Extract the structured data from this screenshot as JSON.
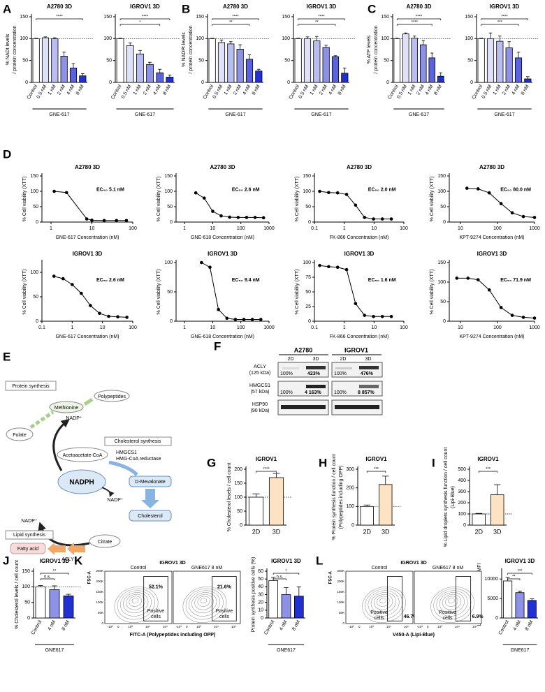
{
  "panel_labels": [
    "A",
    "B",
    "C",
    "D",
    "E",
    "F",
    "G",
    "H",
    "I",
    "J",
    "K",
    "L"
  ],
  "chart_data": [
    {
      "type": "bar",
      "title": "A2780 3D",
      "ylabel": [
        "% NADt levels",
        "/ protein concentration"
      ],
      "xlabel": "GNE-617",
      "categories": [
        "Control",
        "0.5 nM",
        "1 nM",
        "2 nM",
        "4 nM",
        "8 nM"
      ],
      "values": [
        100,
        102,
        100,
        60,
        33,
        15
      ],
      "errors": [
        1,
        2,
        2,
        9,
        10,
        5
      ],
      "colors": [
        "#ffffff",
        "#dfe1f8",
        "#b9bdf0",
        "#8d92e6",
        "#5b62dd",
        "#2130d0"
      ],
      "ylim": [
        0,
        150
      ],
      "yticks": [
        0,
        50,
        100,
        150
      ],
      "refline": 100,
      "significance": [
        "****"
      ]
    },
    {
      "type": "bar",
      "title": "IGROV1 3D",
      "xlabel": "GNE-617",
      "categories": [
        "Control",
        "0.5 nM",
        "1 nM",
        "2 nM",
        "4 nM",
        "8 nM"
      ],
      "values": [
        100,
        84,
        65,
        41,
        22,
        12
      ],
      "errors": [
        1,
        6,
        8,
        5,
        8,
        5
      ],
      "colors": [
        "#ffffff",
        "#dfe1f8",
        "#b9bdf0",
        "#8d92e6",
        "#5b62dd",
        "#2130d0"
      ],
      "ylim": [
        0,
        150
      ],
      "yticks": [
        0,
        50,
        100,
        150
      ],
      "refline": 100,
      "significance": [
        "****",
        "*"
      ]
    },
    {
      "type": "bar",
      "title": "A2780 3D",
      "ylabel": [
        "% NADPt levels",
        "/ protein concentration"
      ],
      "xlabel": "GNE-617",
      "categories": [
        "Control",
        "0.5 nM",
        "1 nM",
        "2 nM",
        "4 nM",
        "8 nM"
      ],
      "values": [
        100,
        91,
        88,
        76,
        53,
        26
      ],
      "errors": [
        1,
        6,
        5,
        10,
        10,
        4
      ],
      "colors": [
        "#ffffff",
        "#dfe1f8",
        "#b9bdf0",
        "#8d92e6",
        "#5b62dd",
        "#2130d0"
      ],
      "ylim": [
        0,
        150
      ],
      "yticks": [
        0,
        50,
        100,
        150
      ],
      "refline": 100,
      "significance": [
        "****",
        "**"
      ]
    },
    {
      "type": "bar",
      "title": "IGROV1 3D",
      "xlabel": "GNE-617",
      "categories": [
        "Control",
        "0.5 nM",
        "1 nM",
        "2 nM",
        "4 nM",
        "8 nM"
      ],
      "values": [
        100,
        100,
        95,
        80,
        59,
        21
      ],
      "errors": [
        1,
        4,
        10,
        5,
        2,
        12
      ],
      "colors": [
        "#ffffff",
        "#dfe1f8",
        "#b9bdf0",
        "#8d92e6",
        "#5b62dd",
        "#2130d0"
      ],
      "ylim": [
        0,
        150
      ],
      "yticks": [
        0,
        50,
        100,
        150
      ],
      "refline": 100,
      "significance": [
        "****",
        "**"
      ]
    },
    {
      "type": "bar",
      "title": "A2780 3D",
      "ylabel": [
        "% ATP levels",
        "/ protein concentration"
      ],
      "xlabel": "GNE-617",
      "categories": [
        "Control",
        "0.5 nM",
        "1 nM",
        "2 nM",
        "4 nM",
        "8 nM"
      ],
      "values": [
        100,
        111,
        101,
        86,
        56,
        14
      ],
      "errors": [
        1,
        2,
        5,
        10,
        11,
        8
      ],
      "colors": [
        "#ffffff",
        "#dfe1f8",
        "#b9bdf0",
        "#8d92e6",
        "#5b62dd",
        "#2130d0"
      ],
      "ylim": [
        0,
        150
      ],
      "yticks": [
        0,
        50,
        100,
        150
      ],
      "refline": 100,
      "significance": [
        "****",
        "****"
      ]
    },
    {
      "type": "bar",
      "title": "IGROV1 3D",
      "xlabel": "GNE-617",
      "categories": [
        "Control",
        "0.5 nM",
        "1 nM",
        "2 nM",
        "4 nM",
        "8 nM"
      ],
      "values": [
        100,
        100,
        94,
        79,
        56,
        8
      ],
      "errors": [
        1,
        13,
        12,
        14,
        13,
        5
      ],
      "colors": [
        "#ffffff",
        "#dfe1f8",
        "#b9bdf0",
        "#8d92e6",
        "#5b62dd",
        "#2130d0"
      ],
      "ylim": [
        0,
        150
      ],
      "yticks": [
        0,
        50,
        100,
        150
      ],
      "refline": 100,
      "significance": [
        "****",
        "***"
      ]
    },
    {
      "type": "curve",
      "title": "A2780 3D",
      "ylabel": "% Cell viability (XTT)",
      "xlabel": "GNE-617 Concentration (nM)",
      "annotation": "EC₅₀ 5.1 nM",
      "log_x": true,
      "x": [
        1.2,
        2.4,
        7.5,
        10,
        20,
        40,
        70
      ],
      "values": [
        100,
        96,
        10,
        6,
        5,
        5,
        5
      ],
      "xlim": [
        0.6,
        100
      ],
      "xticks": [
        1,
        10,
        100
      ],
      "ylim": [
        0,
        150
      ],
      "yticks": [
        0,
        50,
        100,
        150
      ]
    },
    {
      "type": "curve",
      "title": "A2780 3D",
      "ylabel": "% Cell viability (XTT)",
      "xlabel": "GNE-618 Concentration (nM)",
      "annotation": "EC₅₀ 2.6 nM",
      "log_x": true,
      "x": [
        2.5,
        5,
        10,
        20,
        40,
        80,
        160,
        320,
        640
      ],
      "values": [
        95,
        78,
        35,
        20,
        16,
        15,
        15,
        15,
        14
      ],
      "xlim": [
        0.5,
        1000
      ],
      "xticks": [
        1,
        10,
        100,
        1000
      ],
      "ylim": [
        0,
        150
      ],
      "yticks": [
        0,
        50,
        100,
        150
      ]
    },
    {
      "type": "curve",
      "title": "A2780 3D",
      "ylabel": "% Cell viability (XTT)",
      "xlabel": "FK-866 Concentration (nM)",
      "annotation": "EC₅₀ 2.0 nM",
      "log_x": true,
      "x": [
        0.15,
        0.3,
        0.6,
        1.2,
        2.4,
        4.8,
        9.6,
        19,
        38
      ],
      "values": [
        100,
        96,
        95,
        90,
        55,
        15,
        10,
        10,
        10
      ],
      "xlim": [
        0.1,
        100
      ],
      "xticks": [
        0.1,
        1,
        10,
        100
      ],
      "ylim": [
        0,
        150
      ],
      "yticks": [
        0,
        50,
        100,
        150
      ]
    },
    {
      "type": "curve",
      "title": "A2780 3D",
      "ylabel": "% Cell viability (XTT)",
      "xlabel": "KPT-9274 Concentration (nM)",
      "annotation": "EC₅₀ 80.0 nM",
      "log_x": true,
      "x": [
        15,
        30,
        60,
        125,
        250,
        500,
        1000
      ],
      "values": [
        110,
        108,
        95,
        60,
        30,
        18,
        15
      ],
      "xlim": [
        5,
        1000
      ],
      "xticks": [
        10,
        100,
        1000
      ],
      "ylim": [
        0,
        150
      ],
      "yticks": [
        0,
        50,
        100,
        150
      ]
    },
    {
      "type": "curve",
      "title": "IGROV1 3D",
      "ylabel": "% Cell viability (XTT)",
      "xlabel": "GNE-617 Concentration (nM)",
      "annotation": "EC₅₀ 2.6 nM",
      "log_x": true,
      "x": [
        0.25,
        0.5,
        1,
        2,
        4,
        8,
        16,
        32,
        64
      ],
      "values": [
        92,
        87,
        75,
        57,
        32,
        16,
        10,
        9,
        8
      ],
      "xlim": [
        0.1,
        100
      ],
      "xticks": [
        0.1,
        1,
        10,
        100
      ],
      "ylim": [
        0,
        120
      ],
      "yticks": [
        0,
        50,
        100
      ]
    },
    {
      "type": "curve",
      "title": "IGROV1 3D",
      "ylabel": "% Cell viability (XTT)",
      "xlabel": "GNE-618 Concentration (nM)",
      "annotation": "EC₅₀ 9.4 nM",
      "log_x": true,
      "x": [
        4,
        8,
        16,
        32,
        64,
        128,
        256,
        512
      ],
      "values": [
        100,
        92,
        20,
        5,
        3,
        3,
        3,
        3
      ],
      "xlim": [
        0.5,
        1000
      ],
      "xticks": [
        1,
        10,
        100,
        1000
      ],
      "ylim": [
        0,
        100
      ],
      "yticks": [
        0,
        50,
        100
      ]
    },
    {
      "type": "curve",
      "title": "IGROV1 3D",
      "ylabel": "% Cell viability (XTT)",
      "xlabel": "FK-866 Concentration (nM)",
      "annotation": "EC₅₀ 1.6 nM",
      "log_x": true,
      "x": [
        0.15,
        0.3,
        0.6,
        1.2,
        2.4,
        4.8,
        9.6,
        19,
        38
      ],
      "values": [
        95,
        93,
        92,
        88,
        30,
        10,
        8,
        8,
        8
      ],
      "xlim": [
        0.1,
        100
      ],
      "xticks": [
        0.1,
        1,
        10,
        100
      ],
      "ylim": [
        0,
        100
      ],
      "yticks": [
        0,
        25,
        50,
        75,
        100
      ]
    },
    {
      "type": "curve",
      "title": "IGROV1 3D",
      "ylabel": "% Cell viability (XTT)",
      "xlabel": "KPT-9274 Concentration (nM)",
      "annotation": "EC₅₀ 71.9 nM",
      "log_x": true,
      "x": [
        8,
        16,
        30,
        60,
        125,
        250,
        500,
        1000
      ],
      "values": [
        110,
        110,
        106,
        80,
        35,
        15,
        10,
        8
      ],
      "xlim": [
        5,
        1000
      ],
      "xticks": [
        10,
        100,
        1000
      ],
      "ylim": [
        0,
        150
      ],
      "yticks": [
        0,
        50,
        100,
        150
      ]
    },
    {
      "type": "bar",
      "title": "IGROV1",
      "ylabel": [
        "% Cholesterol levels / cell count"
      ],
      "categories": [
        "2D",
        "3D"
      ],
      "values": [
        100,
        170
      ],
      "errors": [
        12,
        15
      ],
      "colors": [
        "#ffffff",
        "#fde3c4"
      ],
      "ylim": [
        0,
        200
      ],
      "yticks": [
        0,
        50,
        100,
        150,
        200
      ],
      "refline": 100,
      "significance": [
        "****"
      ]
    },
    {
      "type": "bar",
      "title": "IGROV1",
      "ylabel": [
        "% Protein synthesis function / cell count",
        "(Polypeptides including OPP)"
      ],
      "categories": [
        "2D",
        "3D"
      ],
      "values": [
        100,
        218
      ],
      "errors": [
        8,
        45
      ],
      "colors": [
        "#ffffff",
        "#fde3c4"
      ],
      "ylim": [
        0,
        300
      ],
      "yticks": [
        0,
        100,
        200,
        300
      ],
      "refline": 100,
      "significance": [
        "***"
      ]
    },
    {
      "type": "bar",
      "title": "IGROV1",
      "ylabel": [
        "% Lipid droplets synthesis function / cell count",
        "(Lipi-Blue)"
      ],
      "categories": [
        "2D",
        "3D"
      ],
      "values": [
        100,
        272
      ],
      "errors": [
        5,
        90
      ],
      "colors": [
        "#ffffff",
        "#fde3c4"
      ],
      "ylim": [
        0,
        500
      ],
      "yticks": [
        0,
        100,
        200,
        300,
        400,
        500
      ],
      "refline": 100,
      "significance": [
        "***"
      ]
    },
    {
      "type": "bar",
      "title": "IGROV1 3D",
      "ylabel": [
        "% Cholesterol levels / cell count"
      ],
      "xlabel": "GNE617",
      "categories": [
        "Control",
        "4 nM",
        "8 nM"
      ],
      "values": [
        100,
        91,
        71
      ],
      "errors": [
        4,
        12,
        5
      ],
      "colors": [
        "#ffffff",
        "#8d92e6",
        "#2130d0"
      ],
      "ylim": [
        0,
        150
      ],
      "yticks": [
        0,
        50,
        100,
        150
      ],
      "refline": 100,
      "significance": [
        "**",
        "n.s."
      ]
    },
    {
      "type": "bar",
      "title": "IGROV1 3D",
      "ylabel": [
        "Protein synthesis positive cells (%)"
      ],
      "xlabel": "GNE617",
      "categories": [
        "Control",
        "4 nM",
        "8 nM"
      ],
      "values": [
        48,
        30,
        28
      ],
      "errors": [
        4,
        9,
        12
      ],
      "colors": [
        "#ffffff",
        "#8d92e6",
        "#2130d0"
      ],
      "ylim": [
        0,
        60
      ],
      "yticks": [
        0,
        10,
        20,
        30,
        40,
        50,
        60
      ],
      "significance": [
        "*",
        "n.s."
      ]
    },
    {
      "type": "bar",
      "title": "IGROV1 3D",
      "ylabel": [
        "Lipi-Blue with Geometric MFI"
      ],
      "xlabel": "GNE617",
      "categories": [
        "Control",
        "4 nM",
        "8 nM"
      ],
      "values": [
        9500,
        6500,
        4500
      ],
      "errors": [
        900,
        400,
        400
      ],
      "colors": [
        "#ffffff",
        "#8d92e6",
        "#2130d0"
      ],
      "ylim": [
        0,
        12000
      ],
      "yticks": [
        0,
        5000,
        10000
      ],
      "significance": [
        "***",
        "**"
      ]
    }
  ],
  "flow": [
    {
      "title": "IGROV1 3D",
      "ylabel": "FSC-A",
      "xlabel": "FITC-A (Polypeptides including OPP)",
      "gate_label": [
        "Positive",
        "cells"
      ],
      "yticks": [
        "0",
        "50K",
        "100K",
        "150K",
        "200K",
        "250K"
      ],
      "xticks": [
        "-10³",
        "0",
        "10³",
        "10⁴",
        "10⁵"
      ],
      "plots": [
        {
          "name": "Control",
          "gate": "52.1%"
        },
        {
          "name": "GNE617 8 nM",
          "gate": "21.6%"
        }
      ]
    },
    {
      "title": "IGROV1 3D",
      "ylabel": "FSC-A",
      "xlabel": "V450-A (Lipi-Blue)",
      "gate_label": [
        "Positive",
        "cells"
      ],
      "yticks": [
        "0",
        "50K",
        "100K",
        "150K",
        "200K",
        "250K"
      ],
      "xticks": [
        "-10³",
        "0",
        "10³",
        "10⁴",
        "10⁵"
      ],
      "plots": [
        {
          "name": "Control",
          "gate": "46.7%"
        },
        {
          "name": "GNE617 8 nM",
          "gate": "6.9%"
        }
      ]
    }
  ],
  "diagram": {
    "groups": [
      "Protein synthesis",
      "Cholesterol synthesis",
      "Lipid synthesis"
    ],
    "nodes": [
      "Methionine",
      "Polypeptides",
      "Folate",
      "Acetoacetate-CoA",
      "NADPH",
      "D-Mevalonate",
      "Cholesterol",
      "Citrate",
      "Fatty acid"
    ],
    "cofactors": [
      "NADP⁺",
      "NADP⁺",
      "NADP⁺"
    ],
    "enzymes": [
      "HMGCS1",
      "HMG-CoA reductase",
      "ACLY"
    ]
  },
  "blot": {
    "cells": [
      "A2780",
      "IGROV1"
    ],
    "conditions": [
      "2D",
      "3D",
      "2D",
      "3D"
    ],
    "rows": [
      {
        "label": [
          "ACLY",
          "(125 kDa)"
        ],
        "values": [
          "100%",
          "423%",
          "100%",
          "476%"
        ]
      },
      {
        "label": [
          "HMGCS1",
          "(57 kDa)"
        ],
        "values": [
          "100%",
          "4 163%",
          "100%",
          "8 857%"
        ]
      },
      {
        "label": [
          "HSP90",
          "(90 kDa)"
        ]
      }
    ]
  }
}
